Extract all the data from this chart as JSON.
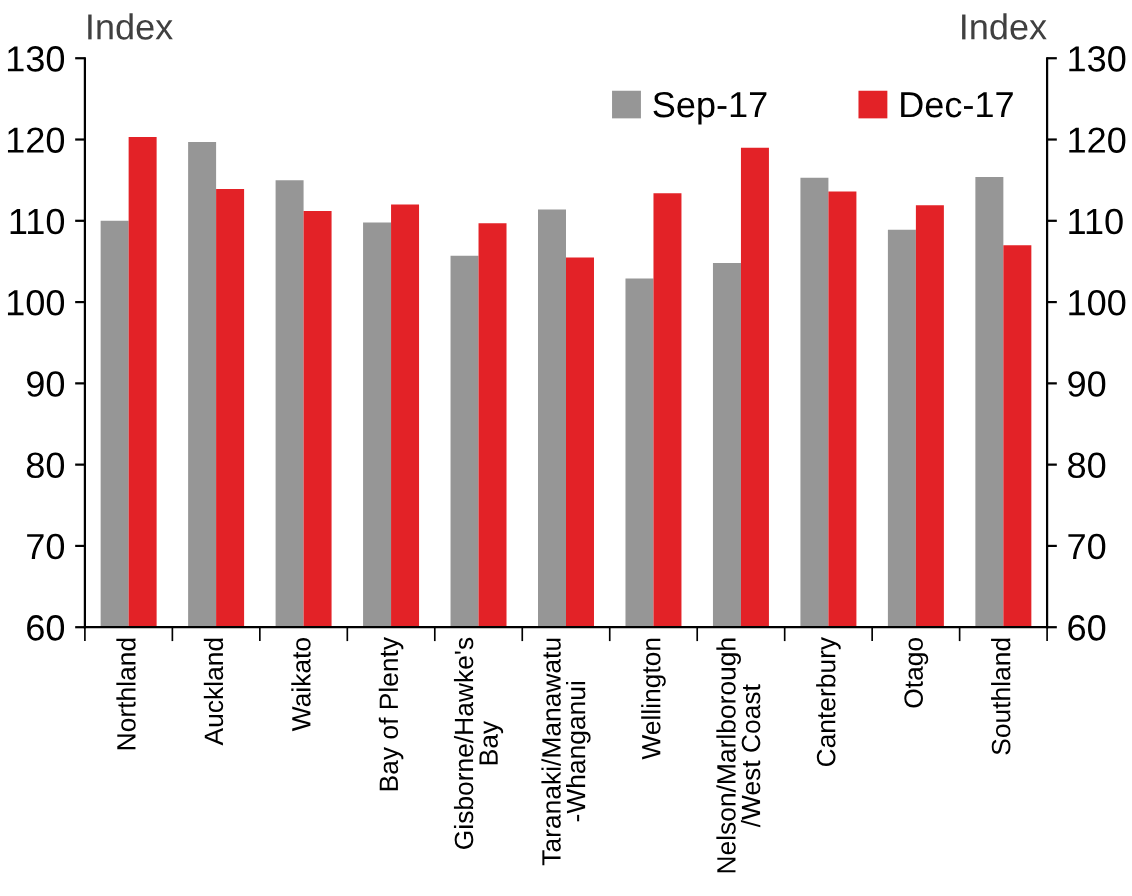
{
  "chart_data": {
    "type": "bar",
    "categories": [
      "Northland",
      "Auckland",
      "Waikato",
      "Bay of Plenty",
      "Gisborne/Hawke's\nBay",
      "Taranaki/Manawatu\n-Whanganui",
      "Wellington",
      "Nelson/Marlborough\n/West Coast",
      "Canterbury",
      "Otago",
      "Southland"
    ],
    "series": [
      {
        "name": "Sep-17",
        "color": "#969696",
        "values": [
          110.0,
          119.7,
          115.0,
          109.8,
          105.7,
          111.4,
          102.9,
          104.8,
          115.3,
          108.9,
          115.4
        ]
      },
      {
        "name": "Dec-17",
        "color": "#e32227",
        "values": [
          120.3,
          113.9,
          111.2,
          112.0,
          109.7,
          105.5,
          113.4,
          119.0,
          113.6,
          111.9,
          107.0
        ]
      }
    ],
    "ylabel": "Index",
    "y2label": "Index",
    "ylim": [
      60,
      130
    ],
    "yticks": [
      60,
      70,
      80,
      90,
      100,
      110,
      120,
      130
    ],
    "y2lim": [
      60,
      130
    ],
    "y2ticks": [
      60,
      70,
      80,
      90,
      100,
      110,
      120,
      130
    ],
    "grid": false,
    "legend": "top right"
  }
}
